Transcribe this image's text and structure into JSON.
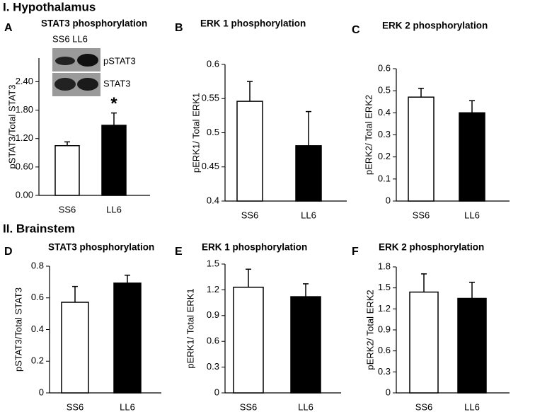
{
  "sections": [
    "I. Hypothalamus",
    "II. Brainstem"
  ],
  "chart_data": [
    {
      "type": "bar",
      "panel": "A",
      "title": "STAT3  phosphorylation",
      "y_label": "pSTAT3/Total STAT3",
      "categories": [
        "SS6",
        "LL6"
      ],
      "values": [
        1.05,
        1.48
      ],
      "errors": [
        0.08,
        0.26
      ],
      "colors": [
        "#ffffff",
        "#000000"
      ],
      "ylim": [
        0,
        2.9
      ],
      "yticks": [
        {
          "value": 0,
          "label": "0.00"
        },
        {
          "value": 0.6,
          "label": "0.60"
        },
        {
          "value": 1.2,
          "label": "1.20"
        },
        {
          "value": 1.8,
          "label": "1.80"
        },
        {
          "value": 2.4,
          "label": "2.40"
        }
      ],
      "inset_labels": [
        "SS6 LL6",
        "pSTAT3",
        "STAT3"
      ],
      "annotation": "*"
    },
    {
      "type": "bar",
      "panel": "B",
      "title": "ERK 1 phosphorylation",
      "y_label": "pERK1/ Total ERK1",
      "categories": [
        "SS6",
        "LL6"
      ],
      "values": [
        0.546,
        0.481
      ],
      "errors": [
        0.029,
        0.05
      ],
      "colors": [
        "#ffffff",
        "#000000"
      ],
      "ylim": [
        0.4,
        0.6
      ],
      "yticks": [
        0.4,
        0.45,
        0.5,
        0.55,
        0.6
      ]
    },
    {
      "type": "bar",
      "panel": "C",
      "title": "ERK 2 phosphorylation",
      "y_label": "pERK2/ Total ERK2",
      "categories": [
        "SS6",
        "LL6"
      ],
      "values": [
        0.471,
        0.4
      ],
      "errors": [
        0.04,
        0.055
      ],
      "colors": [
        "#ffffff",
        "#000000"
      ],
      "ylim": [
        0,
        0.6
      ],
      "yticks": [
        0,
        0.1,
        0.2,
        0.3,
        0.4,
        0.5,
        0.6
      ]
    },
    {
      "type": "bar",
      "panel": "D",
      "title": "STAT3  phosphorylation",
      "y_label": "pSTAT3/Total STAT3",
      "categories": [
        "SS6",
        "LL6"
      ],
      "values": [
        0.572,
        0.693
      ],
      "errors": [
        0.1,
        0.05
      ],
      "colors": [
        "#ffffff",
        "#000000"
      ],
      "ylim": [
        0,
        0.8
      ],
      "yticks": [
        0,
        0.2,
        0.4,
        0.6,
        0.8
      ]
    },
    {
      "type": "bar",
      "panel": "E",
      "title": "ERK 1 phosphorylation",
      "y_label": "pERK1/ Total ERK1",
      "categories": [
        "SS6",
        "LL6"
      ],
      "values": [
        1.23,
        1.12
      ],
      "errors": [
        0.21,
        0.15
      ],
      "colors": [
        "#ffffff",
        "#000000"
      ],
      "ylim": [
        0,
        1.5
      ],
      "yticks": [
        0,
        0.3,
        0.6,
        0.9,
        1.2,
        1.5
      ]
    },
    {
      "type": "bar",
      "panel": "F",
      "title": "ERK 2 phosphorylation",
      "y_label": "pERK2/ Total ERK2",
      "categories": [
        "SS6",
        "LL6"
      ],
      "values": [
        1.44,
        1.35
      ],
      "errors": [
        0.26,
        0.23
      ],
      "colors": [
        "#ffffff",
        "#000000"
      ],
      "ylim": [
        0,
        1.8
      ],
      "yticks": [
        0,
        0.3,
        0.6,
        0.9,
        1.2,
        1.5,
        1.8
      ]
    }
  ]
}
